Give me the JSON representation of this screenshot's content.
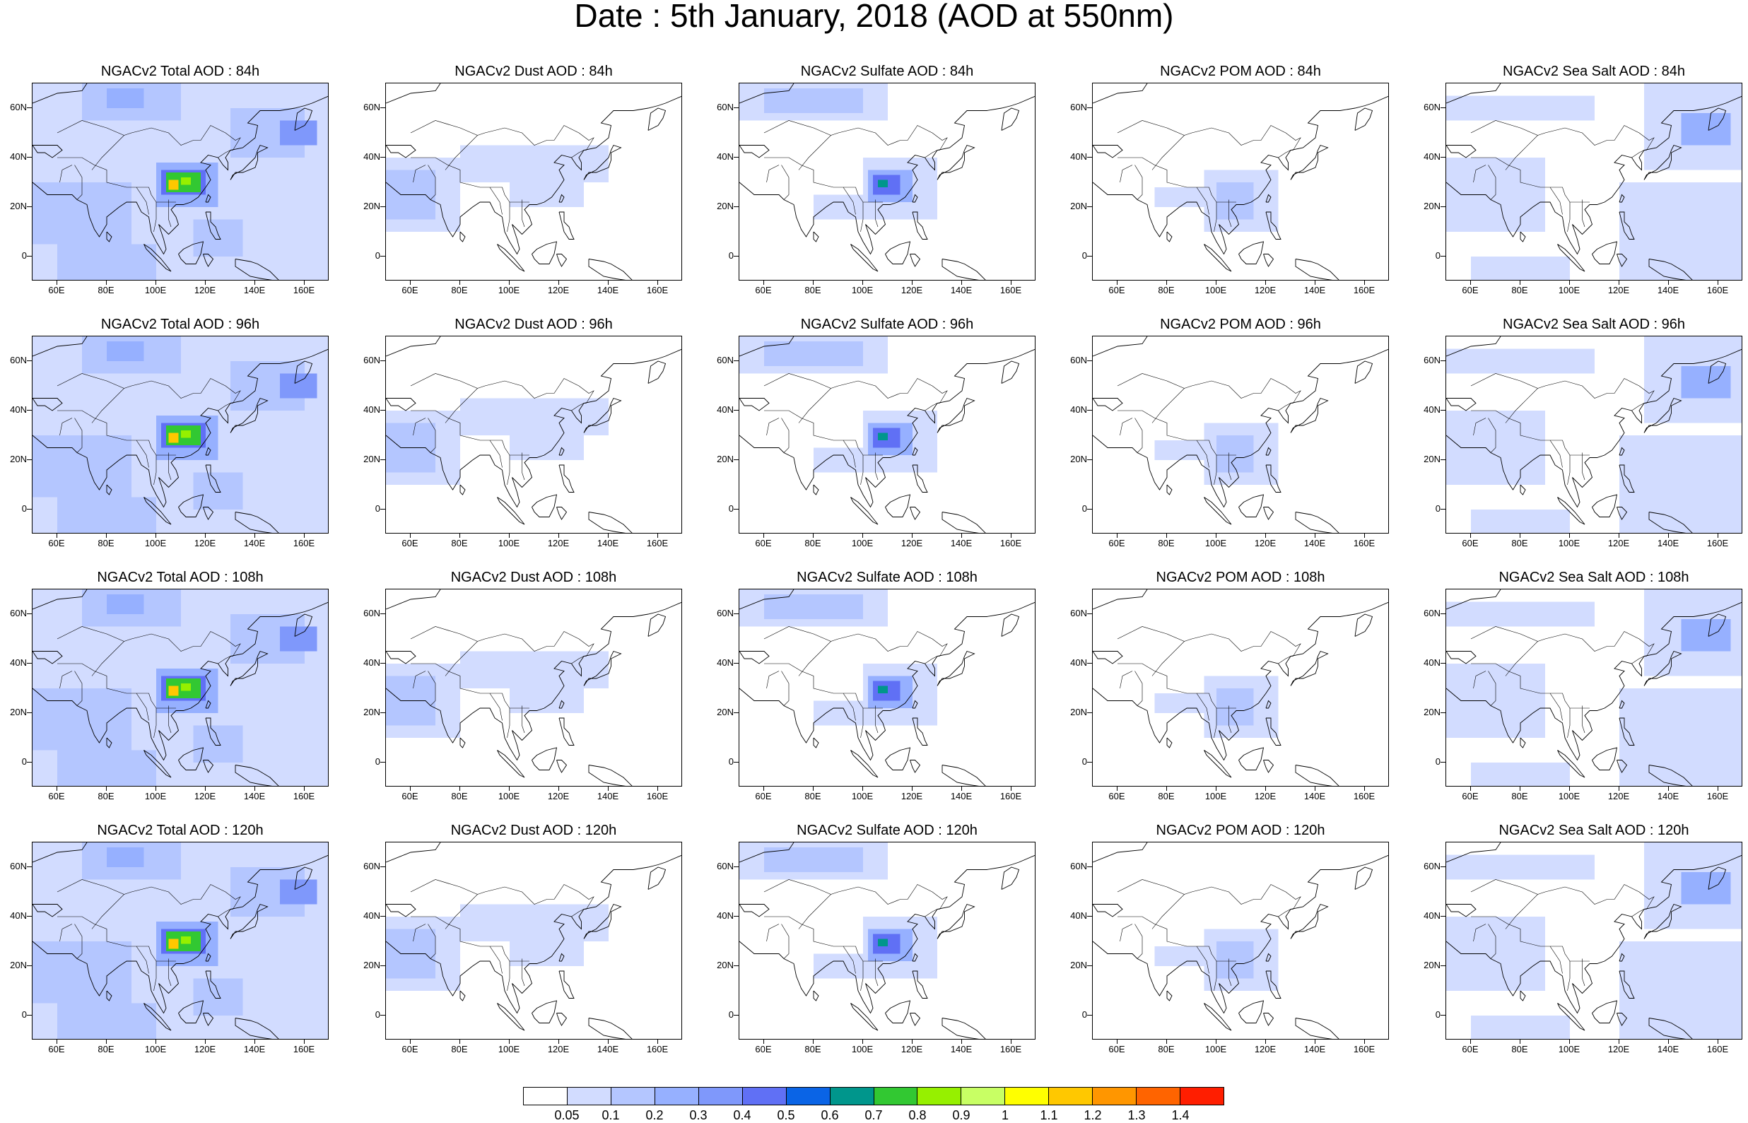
{
  "title": "Date : 5th January, 2018 (AOD at 550nm)",
  "axes": {
    "lat_labels": [
      "60N",
      "40N",
      "20N",
      "0"
    ],
    "lat_values": [
      60,
      40,
      20,
      0
    ],
    "lon_labels": [
      "60E",
      "80E",
      "100E",
      "120E",
      "140E",
      "160E"
    ],
    "lon_values": [
      60,
      80,
      100,
      120,
      140,
      160
    ],
    "lon_range": [
      50,
      170
    ],
    "lat_range": [
      -10,
      70
    ]
  },
  "panels": [
    {
      "title": "NGACv2 Total AOD : 84h",
      "variable": "total",
      "hour": 84
    },
    {
      "title": "NGACv2 Dust AOD : 84h",
      "variable": "dust",
      "hour": 84
    },
    {
      "title": "NGACv2 Sulfate AOD : 84h",
      "variable": "sulfate",
      "hour": 84
    },
    {
      "title": "NGACv2 POM AOD : 84h",
      "variable": "pom",
      "hour": 84
    },
    {
      "title": "NGACv2 Sea Salt AOD : 84h",
      "variable": "seasalt",
      "hour": 84
    },
    {
      "title": "NGACv2 Total AOD : 96h",
      "variable": "total",
      "hour": 96
    },
    {
      "title": "NGACv2 Dust AOD : 96h",
      "variable": "dust",
      "hour": 96
    },
    {
      "title": "NGACv2 Sulfate AOD : 96h",
      "variable": "sulfate",
      "hour": 96
    },
    {
      "title": "NGACv2 POM AOD : 96h",
      "variable": "pom",
      "hour": 96
    },
    {
      "title": "NGACv2 Sea Salt AOD : 96h",
      "variable": "seasalt",
      "hour": 96
    },
    {
      "title": "NGACv2 Total AOD : 108h",
      "variable": "total",
      "hour": 108
    },
    {
      "title": "NGACv2 Dust AOD : 108h",
      "variable": "dust",
      "hour": 108
    },
    {
      "title": "NGACv2 Sulfate AOD : 108h",
      "variable": "sulfate",
      "hour": 108
    },
    {
      "title": "NGACv2 POM AOD : 108h",
      "variable": "pom",
      "hour": 108
    },
    {
      "title": "NGACv2 Sea Salt AOD : 108h",
      "variable": "seasalt",
      "hour": 108
    },
    {
      "title": "NGACv2 Total AOD : 120h",
      "variable": "total",
      "hour": 120
    },
    {
      "title": "NGACv2 Dust AOD : 120h",
      "variable": "dust",
      "hour": 120
    },
    {
      "title": "NGACv2 Sulfate AOD : 120h",
      "variable": "sulfate",
      "hour": 120
    },
    {
      "title": "NGACv2 POM AOD : 120h",
      "variable": "pom",
      "hour": 120
    },
    {
      "title": "NGACv2 Sea Salt  AOD : 120h",
      "variable": "seasalt",
      "hour": 120
    }
  ],
  "colorbar": {
    "colors": [
      "#ffffff",
      "#d2dcff",
      "#b4c6ff",
      "#96b0ff",
      "#7f98fb",
      "#6070f5",
      "#0a64e6",
      "#00968c",
      "#32c832",
      "#96f000",
      "#c8ff64",
      "#ffff00",
      "#ffc800",
      "#ff9600",
      "#ff6400",
      "#ff1e00"
    ],
    "labels": [
      "0.05",
      "0.1",
      "0.2",
      "0.3",
      "0.4",
      "0.5",
      "0.6",
      "0.7",
      "0.8",
      "0.9",
      "1",
      "1.1",
      "1.2",
      "1.3",
      "1.4"
    ]
  },
  "fields": {
    "total": [
      {
        "lon": [
          50,
          170
        ],
        "lat": [
          -10,
          70
        ],
        "level": 1
      },
      {
        "lon": [
          50,
          90
        ],
        "lat": [
          5,
          30
        ],
        "level": 2
      },
      {
        "lon": [
          70,
          110
        ],
        "lat": [
          55,
          70
        ],
        "level": 2
      },
      {
        "lon": [
          80,
          95
        ],
        "lat": [
          60,
          68
        ],
        "level": 3
      },
      {
        "lon": [
          130,
          160
        ],
        "lat": [
          40,
          60
        ],
        "level": 2
      },
      {
        "lon": [
          150,
          165
        ],
        "lat": [
          45,
          55
        ],
        "level": 4
      },
      {
        "lon": [
          100,
          125
        ],
        "lat": [
          20,
          38
        ],
        "level": 3
      },
      {
        "lon": [
          102,
          120
        ],
        "lat": [
          25,
          35
        ],
        "level": 5
      },
      {
        "lon": [
          104,
          118
        ],
        "lat": [
          26,
          34
        ],
        "level": 8
      },
      {
        "lon": [
          105,
          109
        ],
        "lat": [
          27,
          31
        ],
        "level": 12
      },
      {
        "lon": [
          110,
          114
        ],
        "lat": [
          29,
          32
        ],
        "level": 9
      },
      {
        "lon": [
          115,
          135
        ],
        "lat": [
          0,
          15
        ],
        "level": 2
      },
      {
        "lon": [
          60,
          100
        ],
        "lat": [
          -10,
          5
        ],
        "level": 2
      }
    ],
    "dust": [
      {
        "lon": [
          50,
          80
        ],
        "lat": [
          10,
          40
        ],
        "level": 1
      },
      {
        "lon": [
          80,
          140
        ],
        "lat": [
          30,
          45
        ],
        "level": 1
      },
      {
        "lon": [
          50,
          70
        ],
        "lat": [
          15,
          35
        ],
        "level": 2
      },
      {
        "lon": [
          100,
          130
        ],
        "lat": [
          20,
          35
        ],
        "level": 1
      }
    ],
    "sulfate": [
      {
        "lon": [
          50,
          110
        ],
        "lat": [
          55,
          70
        ],
        "level": 1
      },
      {
        "lon": [
          60,
          100
        ],
        "lat": [
          58,
          68
        ],
        "level": 2
      },
      {
        "lon": [
          100,
          130
        ],
        "lat": [
          15,
          40
        ],
        "level": 1
      },
      {
        "lon": [
          102,
          120
        ],
        "lat": [
          22,
          35
        ],
        "level": 3
      },
      {
        "lon": [
          104,
          115
        ],
        "lat": [
          25,
          33
        ],
        "level": 5
      },
      {
        "lon": [
          106,
          110
        ],
        "lat": [
          28,
          31
        ],
        "level": 7
      },
      {
        "lon": [
          80,
          100
        ],
        "lat": [
          15,
          25
        ],
        "level": 1
      }
    ],
    "pom": [
      {
        "lon": [
          95,
          125
        ],
        "lat": [
          10,
          35
        ],
        "level": 1
      },
      {
        "lon": [
          100,
          115
        ],
        "lat": [
          15,
          30
        ],
        "level": 2
      },
      {
        "lon": [
          75,
          95
        ],
        "lat": [
          20,
          28
        ],
        "level": 1
      }
    ],
    "seasalt": [
      {
        "lon": [
          50,
          170
        ],
        "lat": [
          -10,
          70
        ],
        "level": 0
      },
      {
        "lon": [
          50,
          110
        ],
        "lat": [
          55,
          65
        ],
        "level": 1
      },
      {
        "lon": [
          130,
          170
        ],
        "lat": [
          35,
          70
        ],
        "level": 1
      },
      {
        "lon": [
          145,
          165
        ],
        "lat": [
          45,
          58
        ],
        "level": 3
      },
      {
        "lon": [
          120,
          170
        ],
        "lat": [
          -10,
          30
        ],
        "level": 1
      },
      {
        "lon": [
          50,
          90
        ],
        "lat": [
          10,
          40
        ],
        "level": 1
      },
      {
        "lon": [
          60,
          100
        ],
        "lat": [
          -10,
          0
        ],
        "level": 1
      }
    ]
  }
}
